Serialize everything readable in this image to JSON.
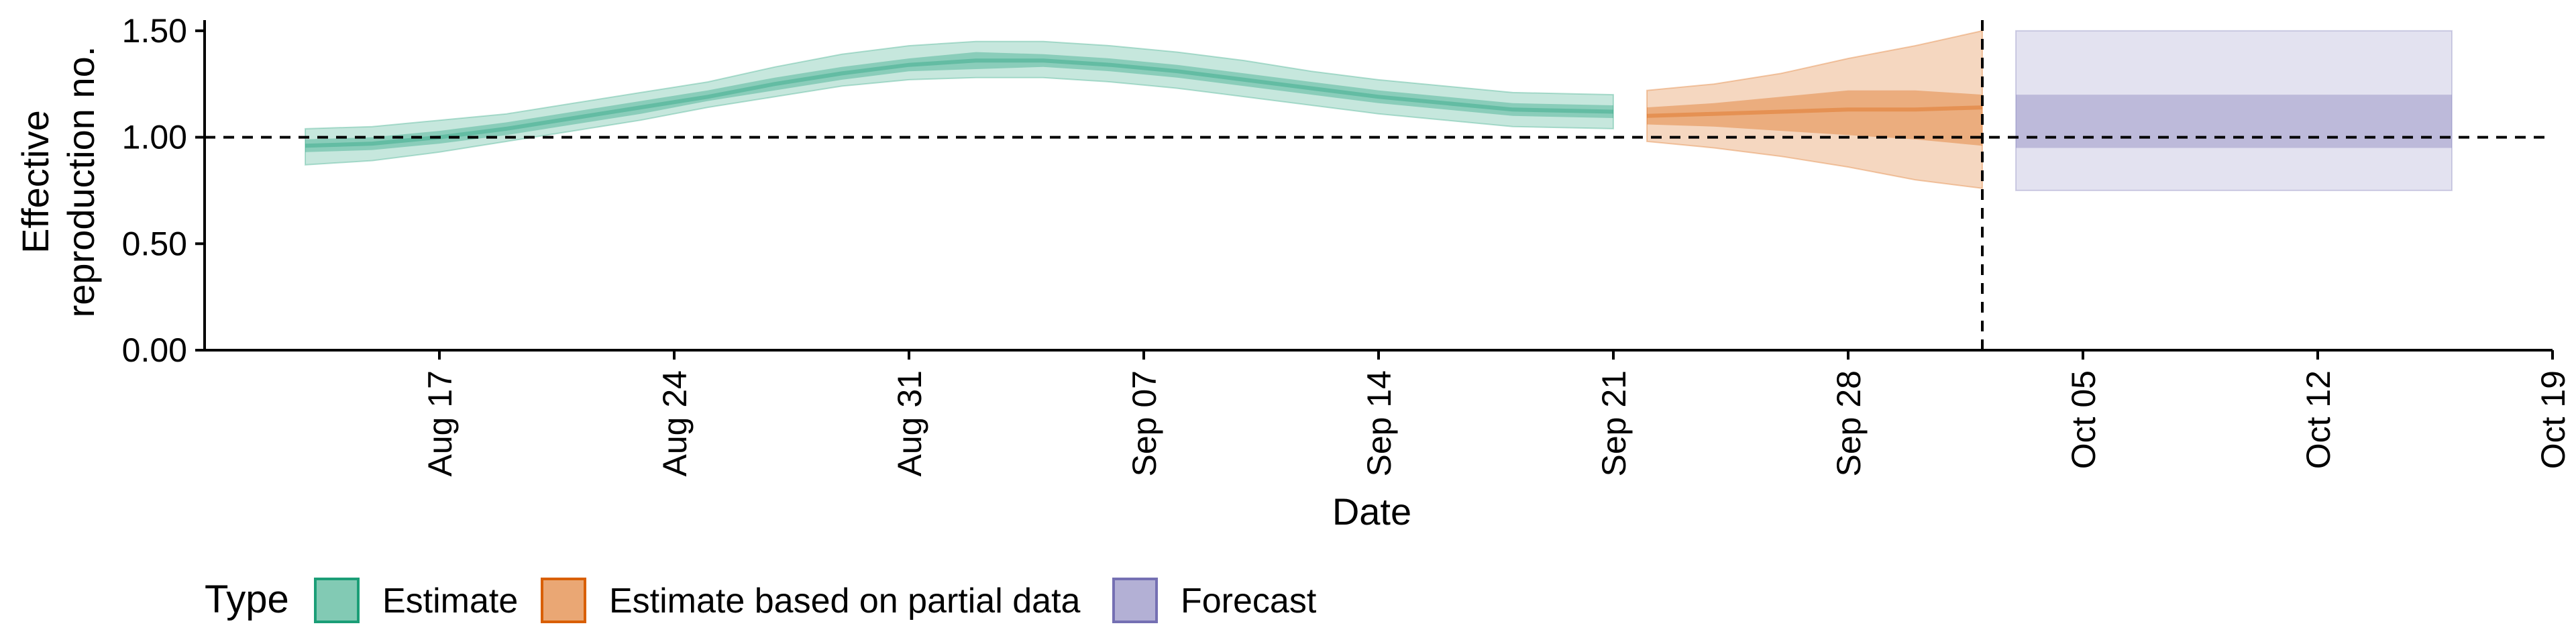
{
  "chart_data": {
    "type": "area",
    "xlabel": "Date",
    "ylabel_lines": [
      "Effective",
      "reproduction no."
    ],
    "ylim": [
      0.0,
      1.55
    ],
    "xlim": [
      "2020-08-10",
      "2020-10-19"
    ],
    "yticks": [
      0.0,
      0.5,
      1.0,
      1.5
    ],
    "ytick_labels": [
      "0.00",
      "0.50",
      "1.00",
      "1.50"
    ],
    "xticks": [
      "2020-08-17",
      "2020-08-24",
      "2020-08-31",
      "2020-09-07",
      "2020-09-14",
      "2020-09-21",
      "2020-09-28",
      "2020-10-05",
      "2020-10-12",
      "2020-10-19"
    ],
    "xtick_labels": [
      "Aug 17",
      "Aug 24",
      "Aug 31",
      "Sep 07",
      "Sep 14",
      "Sep 21",
      "Sep 28",
      "Oct 05",
      "Oct 12",
      "Oct 19"
    ],
    "reference_line_y": 1.0,
    "vline_x": "2020-10-02",
    "legend_title": "Type",
    "legend_placement": "bottom",
    "series": [
      {
        "name": "Estimate",
        "color": "#1b9e77",
        "x": [
          "2020-08-13",
          "2020-08-15",
          "2020-08-17",
          "2020-08-19",
          "2020-08-21",
          "2020-08-23",
          "2020-08-25",
          "2020-08-27",
          "2020-08-29",
          "2020-08-31",
          "2020-09-02",
          "2020-09-04",
          "2020-09-06",
          "2020-09-08",
          "2020-09-10",
          "2020-09-12",
          "2020-09-14",
          "2020-09-16",
          "2020-09-18",
          "2020-09-21"
        ],
        "median": [
          0.96,
          0.97,
          1.0,
          1.04,
          1.09,
          1.14,
          1.19,
          1.25,
          1.3,
          1.34,
          1.36,
          1.36,
          1.34,
          1.31,
          1.27,
          1.23,
          1.19,
          1.16,
          1.13,
          1.12
        ],
        "lower_90": [
          0.87,
          0.89,
          0.93,
          0.98,
          1.03,
          1.08,
          1.14,
          1.19,
          1.24,
          1.27,
          1.28,
          1.28,
          1.26,
          1.23,
          1.19,
          1.15,
          1.11,
          1.08,
          1.05,
          1.04
        ],
        "upper_90": [
          1.04,
          1.05,
          1.08,
          1.11,
          1.16,
          1.21,
          1.26,
          1.33,
          1.39,
          1.43,
          1.45,
          1.45,
          1.43,
          1.4,
          1.36,
          1.31,
          1.27,
          1.24,
          1.21,
          1.2
        ],
        "lower_50": [
          0.93,
          0.94,
          0.97,
          1.01,
          1.06,
          1.11,
          1.17,
          1.22,
          1.27,
          1.31,
          1.32,
          1.33,
          1.31,
          1.28,
          1.24,
          1.2,
          1.16,
          1.13,
          1.1,
          1.09
        ],
        "upper_50": [
          0.99,
          1.0,
          1.03,
          1.07,
          1.12,
          1.17,
          1.22,
          1.28,
          1.33,
          1.37,
          1.4,
          1.39,
          1.37,
          1.34,
          1.3,
          1.26,
          1.22,
          1.19,
          1.16,
          1.15
        ]
      },
      {
        "name": "Estimate based on partial data",
        "color": "#d95f02",
        "x": [
          "2020-09-22",
          "2020-09-24",
          "2020-09-26",
          "2020-09-28",
          "2020-09-30",
          "2020-10-02"
        ],
        "median": [
          1.1,
          1.11,
          1.12,
          1.13,
          1.13,
          1.14
        ],
        "lower_90": [
          0.98,
          0.95,
          0.91,
          0.86,
          0.8,
          0.76
        ],
        "upper_90": [
          1.22,
          1.25,
          1.3,
          1.37,
          1.43,
          1.5
        ],
        "lower_50": [
          1.06,
          1.05,
          1.03,
          1.01,
          0.99,
          0.96
        ],
        "upper_50": [
          1.14,
          1.16,
          1.19,
          1.22,
          1.22,
          1.2
        ]
      },
      {
        "name": "Forecast",
        "color": "#7570b3",
        "x": [
          "2020-10-03",
          "2020-10-16"
        ],
        "lower_90": [
          0.75,
          0.75
        ],
        "upper_90": [
          1.5,
          1.5
        ],
        "lower_50": [
          0.95,
          0.95
        ],
        "upper_50": [
          1.2,
          1.2
        ]
      }
    ]
  }
}
